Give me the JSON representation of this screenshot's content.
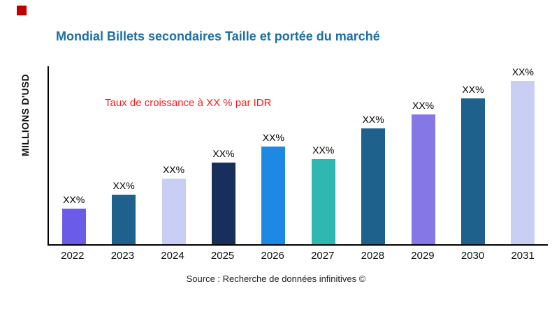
{
  "header": {
    "logo_color": "#C00000",
    "title": "Mondial Billets secondaires Taille et portée du marché",
    "title_color": "#1D6FA5"
  },
  "chart_data": {
    "type": "bar",
    "title": "Mondial Billets secondaires Taille et portée du marché",
    "ylabel": "MILLIONS D'USD",
    "xlabel": "",
    "annotation": "Taux de croissance à XX % par IDR",
    "annotation_color": "#FF1A1A",
    "categories": [
      "2022",
      "2023",
      "2024",
      "2025",
      "2026",
      "2027",
      "2028",
      "2029",
      "2030",
      "2031"
    ],
    "values": [
      20,
      28,
      37,
      46,
      55,
      48,
      65,
      73,
      82,
      92
    ],
    "bar_labels": [
      "XX%",
      "XX%",
      "XX%",
      "XX%",
      "XX%",
      "XX%",
      "XX%",
      "XX%",
      "XX%",
      "XX%"
    ],
    "bar_colors": [
      "#6A5CE8",
      "#1F618D",
      "#C9CEF4",
      "#182E5B",
      "#1E88E5",
      "#2FB8B2",
      "#1F618D",
      "#8577E6",
      "#1F618D",
      "#C9CEF4"
    ],
    "ylim": [
      0,
      100
    ],
    "grid": false,
    "legend": false,
    "axis_color": "#000000"
  },
  "footer": {
    "source": "Source : Recherche de données infinitives ©"
  }
}
